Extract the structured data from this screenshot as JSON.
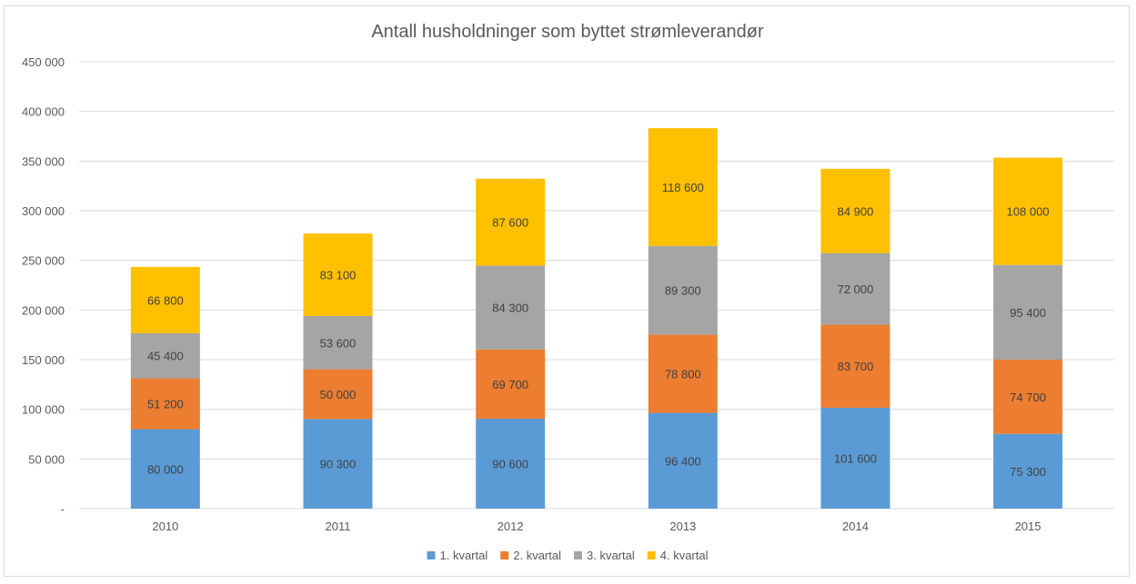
{
  "chart_data": {
    "type": "bar",
    "stacked": true,
    "title": "Antall husholdninger som byttet strømleverandør",
    "xlabel": "",
    "ylabel": "",
    "categories": [
      "2010",
      "2011",
      "2012",
      "2013",
      "2014",
      "2015"
    ],
    "series": [
      {
        "name": "1. kvartal",
        "color": "#5b9bd5",
        "values": [
          80000,
          90300,
          90600,
          96400,
          101600,
          75300
        ],
        "labels": [
          "80 000",
          "90 300",
          "90 600",
          "96 400",
          "101 600",
          "75 300"
        ]
      },
      {
        "name": "2. kvartal",
        "color": "#ed7d31",
        "values": [
          51200,
          50000,
          69700,
          78800,
          83700,
          74700
        ],
        "labels": [
          "51 200",
          "50 000",
          "69 700",
          "78 800",
          "83 700",
          "74 700"
        ]
      },
      {
        "name": "3. kvartal",
        "color": "#a5a5a5",
        "values": [
          45400,
          53600,
          84300,
          89300,
          72000,
          95400
        ],
        "labels": [
          "45 400",
          "53 600",
          "84 300",
          "89 300",
          "72 000",
          "95 400"
        ]
      },
      {
        "name": "4. kvartal",
        "color": "#ffc000",
        "values": [
          66800,
          83100,
          87600,
          118600,
          84900,
          108000
        ],
        "labels": [
          "66 800",
          "83 100",
          "87 600",
          "118 600",
          "84 900",
          "108 000"
        ]
      }
    ],
    "ylim": [
      0,
      450000
    ],
    "yticks": [
      0,
      50000,
      100000,
      150000,
      200000,
      250000,
      300000,
      350000,
      400000,
      450000
    ],
    "ytick_labels": [
      "-",
      "50 000",
      "100 000",
      "150 000",
      "200 000",
      "250 000",
      "300 000",
      "350 000",
      "400 000",
      "450 000"
    ],
    "grid": true,
    "legend_position": "bottom",
    "gridline_color": "#d9d9d9",
    "text_color": "#595959"
  }
}
